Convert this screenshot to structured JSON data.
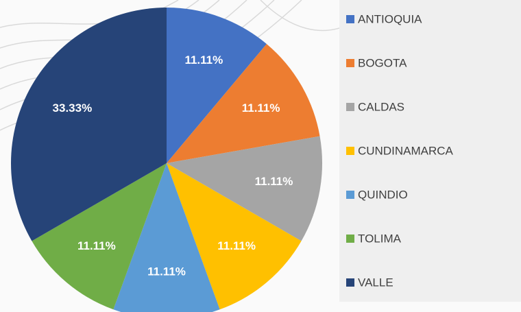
{
  "chart_data": {
    "type": "pie",
    "categories": [
      "ANTIOQUIA",
      "BOGOTA",
      "CALDAS",
      "CUNDINAMARCA",
      "QUINDIO",
      "TOLIMA",
      "VALLE"
    ],
    "values": [
      11.11,
      11.11,
      11.11,
      11.11,
      11.11,
      11.11,
      33.33
    ],
    "value_labels": [
      "11.11%",
      "11.11%",
      "11.11%",
      "11.11%",
      "11.11%",
      "11.11%",
      "33.33%"
    ],
    "colors": [
      "#4472c4",
      "#ed7d31",
      "#a5a5a5",
      "#ffc000",
      "#5b9bd5",
      "#70ad47",
      "#264478"
    ],
    "legend": "right"
  }
}
